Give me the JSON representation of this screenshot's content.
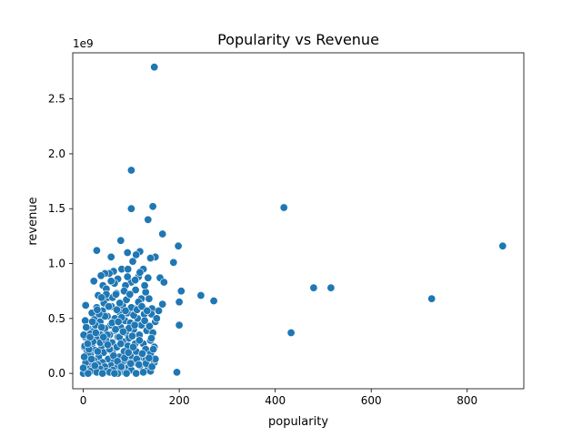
{
  "chart_data": {
    "type": "scatter",
    "title": "Popularity vs Revenue",
    "xlabel": "popularity",
    "ylabel": "revenue",
    "y_scale_label": "1e9",
    "xlim": [
      -22,
      918
    ],
    "ylim": [
      -0.14,
      2.92
    ],
    "x_ticks": [
      {
        "value": 0,
        "label": "0"
      },
      {
        "value": 200,
        "label": "200"
      },
      {
        "value": 400,
        "label": "400"
      },
      {
        "value": 600,
        "label": "600"
      },
      {
        "value": 800,
        "label": "800"
      }
    ],
    "y_ticks": [
      {
        "value": 0.0,
        "label": "0.0"
      },
      {
        "value": 0.5,
        "label": "0.5"
      },
      {
        "value": 1.0,
        "label": "1.0"
      },
      {
        "value": 1.5,
        "label": "1.5"
      },
      {
        "value": 2.0,
        "label": "2.0"
      },
      {
        "value": 2.5,
        "label": "2.5"
      }
    ],
    "grid": false,
    "marker_color": "#1f77b4",
    "points": [
      [
        148,
        2.79
      ],
      [
        100,
        1.85
      ],
      [
        145,
        1.52
      ],
      [
        100,
        1.5
      ],
      [
        418,
        1.51
      ],
      [
        135,
        1.4
      ],
      [
        165,
        1.27
      ],
      [
        78,
        1.21
      ],
      [
        28,
        1.12
      ],
      [
        198,
        1.16
      ],
      [
        874,
        1.16
      ],
      [
        118,
        1.11
      ],
      [
        92,
        1.1
      ],
      [
        110,
        1.08
      ],
      [
        150,
        1.06
      ],
      [
        58,
        1.06
      ],
      [
        140,
        1.05
      ],
      [
        188,
        1.01
      ],
      [
        103,
        1.02
      ],
      [
        80,
        0.95
      ],
      [
        93,
        0.95
      ],
      [
        125,
        0.95
      ],
      [
        63,
        0.93
      ],
      [
        54,
        0.91
      ],
      [
        45,
        0.91
      ],
      [
        37,
        0.89
      ],
      [
        115,
        0.88
      ],
      [
        72,
        0.86
      ],
      [
        135,
        0.87
      ],
      [
        160,
        0.87
      ],
      [
        22,
        0.84
      ],
      [
        100,
        0.83
      ],
      [
        168,
        0.83
      ],
      [
        41,
        0.8
      ],
      [
        88,
        0.8
      ],
      [
        48,
        0.77
      ],
      [
        109,
        0.76
      ],
      [
        204,
        0.75
      ],
      [
        130,
        0.74
      ],
      [
        69,
        0.73
      ],
      [
        31,
        0.71
      ],
      [
        245,
        0.71
      ],
      [
        96,
        0.71
      ],
      [
        52,
        0.69
      ],
      [
        121,
        0.68
      ],
      [
        137,
        0.68
      ],
      [
        480,
        0.78
      ],
      [
        516,
        0.78
      ],
      [
        726,
        0.68
      ],
      [
        272,
        0.66
      ],
      [
        200,
        0.65
      ],
      [
        165,
        0.63
      ],
      [
        5,
        0.62
      ],
      [
        82,
        0.62
      ],
      [
        59,
        0.61
      ],
      [
        28,
        0.6
      ],
      [
        106,
        0.59
      ],
      [
        143,
        0.59
      ],
      [
        40,
        0.57
      ],
      [
        75,
        0.56
      ],
      [
        92,
        0.55
      ],
      [
        18,
        0.55
      ],
      [
        127,
        0.54
      ],
      [
        142,
        0.54
      ],
      [
        50,
        0.52
      ],
      [
        66,
        0.5
      ],
      [
        113,
        0.5
      ],
      [
        23,
        0.49
      ],
      [
        87,
        0.48
      ],
      [
        150,
        0.47
      ],
      [
        35,
        0.47
      ],
      [
        4,
        0.48
      ],
      [
        98,
        0.46
      ],
      [
        200,
        0.44
      ],
      [
        57,
        0.44
      ],
      [
        121,
        0.44
      ],
      [
        78,
        0.42
      ],
      [
        10,
        0.41
      ],
      [
        45,
        0.41
      ],
      [
        105,
        0.4
      ],
      [
        66,
        0.39
      ],
      [
        132,
        0.39
      ],
      [
        21,
        0.38
      ],
      [
        433,
        0.37
      ],
      [
        88,
        0.37
      ],
      [
        145,
        0.37
      ],
      [
        36,
        0.35
      ],
      [
        55,
        0.35
      ],
      [
        117,
        0.35
      ],
      [
        4,
        0.33
      ],
      [
        72,
        0.33
      ],
      [
        95,
        0.32
      ],
      [
        28,
        0.31
      ],
      [
        12,
        0.3
      ],
      [
        140,
        0.3
      ],
      [
        48,
        0.29
      ],
      [
        82,
        0.29
      ],
      [
        60,
        0.28
      ],
      [
        108,
        0.27
      ],
      [
        125,
        0.27
      ],
      [
        18,
        0.26
      ],
      [
        38,
        0.25
      ],
      [
        93,
        0.25
      ],
      [
        2,
        0.24
      ],
      [
        70,
        0.24
      ],
      [
        148,
        0.24
      ],
      [
        55,
        0.23
      ],
      [
        130,
        0.22
      ],
      [
        25,
        0.21
      ],
      [
        8,
        0.2
      ],
      [
        85,
        0.2
      ],
      [
        110,
        0.2
      ],
      [
        42,
        0.19
      ],
      [
        62,
        0.18
      ],
      [
        140,
        0.18
      ],
      [
        15,
        0.17
      ],
      [
        98,
        0.16
      ],
      [
        32,
        0.15
      ],
      [
        75,
        0.15
      ],
      [
        120,
        0.15
      ],
      [
        5,
        0.14
      ],
      [
        52,
        0.13
      ],
      [
        88,
        0.12
      ],
      [
        22,
        0.12
      ],
      [
        130,
        0.12
      ],
      [
        65,
        0.11
      ],
      [
        40,
        0.1
      ],
      [
        105,
        0.1
      ],
      [
        148,
        0.1
      ],
      [
        12,
        0.09
      ],
      [
        80,
        0.09
      ],
      [
        30,
        0.08
      ],
      [
        58,
        0.07
      ],
      [
        118,
        0.07
      ],
      [
        3,
        0.06
      ],
      [
        45,
        0.06
      ],
      [
        95,
        0.06
      ],
      [
        20,
        0.05
      ],
      [
        70,
        0.05
      ],
      [
        135,
        0.05
      ],
      [
        8,
        0.04
      ],
      [
        35,
        0.04
      ],
      [
        62,
        0.03
      ],
      [
        100,
        0.03
      ],
      [
        15,
        0.02
      ],
      [
        48,
        0.02
      ],
      [
        82,
        0.02
      ],
      [
        140,
        0.02
      ],
      [
        1,
        0.01
      ],
      [
        28,
        0.01
      ],
      [
        55,
        0.01
      ],
      [
        90,
        0.0
      ],
      [
        195,
        0.01
      ],
      [
        0,
        0.0
      ],
      [
        40,
        0.0
      ],
      [
        72,
        0.0
      ],
      [
        110,
        0.0
      ],
      [
        10,
        0.0
      ],
      [
        65,
        0.0
      ],
      [
        125,
        0.01
      ],
      [
        50,
        0.35
      ],
      [
        30,
        0.2
      ],
      [
        60,
        0.46
      ],
      [
        80,
        0.51
      ],
      [
        100,
        0.6
      ],
      [
        115,
        0.65
      ],
      [
        90,
        0.67
      ],
      [
        70,
        0.58
      ],
      [
        45,
        0.52
      ],
      [
        25,
        0.44
      ],
      [
        15,
        0.36
      ],
      [
        35,
        0.28
      ],
      [
        55,
        0.22
      ],
      [
        75,
        0.33
      ],
      [
        95,
        0.41
      ],
      [
        105,
        0.53
      ],
      [
        85,
        0.75
      ],
      [
        65,
        0.82
      ],
      [
        43,
        0.64
      ],
      [
        20,
        0.29
      ],
      [
        10,
        0.18
      ],
      [
        5,
        0.1
      ],
      [
        0,
        0.05
      ],
      [
        2,
        0.15
      ],
      [
        3,
        0.25
      ],
      [
        1,
        0.35
      ],
      [
        6,
        0.42
      ],
      [
        12,
        0.22
      ],
      [
        17,
        0.13
      ],
      [
        24,
        0.07
      ],
      [
        33,
        0.54
      ],
      [
        38,
        0.42
      ],
      [
        47,
        0.3
      ],
      [
        53,
        0.61
      ],
      [
        61,
        0.69
      ],
      [
        67,
        0.4
      ],
      [
        73,
        0.47
      ],
      [
        78,
        0.27
      ],
      [
        83,
        0.38
      ],
      [
        88,
        0.57
      ],
      [
        97,
        0.72
      ],
      [
        102,
        0.34
      ],
      [
        107,
        0.44
      ],
      [
        112,
        0.58
      ],
      [
        117,
        0.3
      ],
      [
        122,
        0.61
      ],
      [
        128,
        0.48
      ],
      [
        133,
        0.57
      ],
      [
        138,
        0.43
      ],
      [
        142,
        0.32
      ],
      [
        146,
        0.22
      ],
      [
        150,
        0.13
      ],
      [
        153,
        0.5
      ],
      [
        157,
        0.57
      ],
      [
        128,
        0.8
      ],
      [
        118,
        0.92
      ],
      [
        108,
        0.85
      ],
      [
        92,
        0.88
      ],
      [
        76,
        0.64
      ],
      [
        68,
        0.72
      ],
      [
        58,
        0.84
      ],
      [
        48,
        0.72
      ],
      [
        38,
        0.69
      ],
      [
        29,
        0.58
      ],
      [
        19,
        0.47
      ],
      [
        14,
        0.33
      ],
      [
        9,
        0.27
      ],
      [
        26,
        0.37
      ],
      [
        42,
        0.33
      ],
      [
        51,
        0.26
      ],
      [
        63,
        0.16
      ],
      [
        71,
        0.11
      ],
      [
        79,
        0.06
      ],
      [
        86,
        0.14
      ],
      [
        94,
        0.19
      ],
      [
        99,
        0.09
      ],
      [
        104,
        0.24
      ],
      [
        111,
        0.13
      ],
      [
        116,
        0.08
      ],
      [
        123,
        0.18
      ],
      [
        131,
        0.09
      ],
      [
        137,
        0.14
      ],
      [
        143,
        0.06
      ]
    ]
  }
}
